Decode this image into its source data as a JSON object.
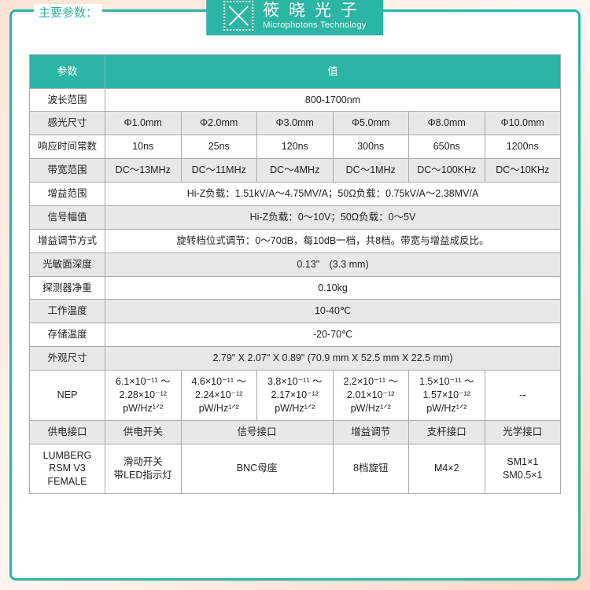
{
  "header": {
    "title": "主要参数："
  },
  "logo": {
    "cn": "筱 晓 光 子",
    "en": "Microphotons Technology"
  },
  "table": {
    "header_param": "参数",
    "header_value": "值",
    "rows": {
      "wavelength": {
        "label": "波长范围",
        "value": "800-1700nm"
      },
      "sensor_size": {
        "label": "感光尺寸",
        "v": [
          "Φ1.0mm",
          "Φ2.0mm",
          "Φ3.0mm",
          "Φ5.0mm",
          "Φ8.0mm",
          "Φ10.0mm"
        ]
      },
      "response_time": {
        "label": "响应时间常数",
        "v": [
          "10ns",
          "25ns",
          "120ns",
          "300ns",
          "650ns",
          "1200ns"
        ]
      },
      "bandwidth": {
        "label": "带宽范围",
        "v": [
          "DC～13MHz",
          "DC～11MHz",
          "DC～4MHz",
          "DC～1MHz",
          "DC～100KHz",
          "DC～10KHz"
        ]
      },
      "gain_range": {
        "label": "增益范围",
        "value": "Hi-Z负载：1.51kV/A～4.75MV/A；50Ω负载：0.75kV/A～2.38MV/A"
      },
      "signal_amp": {
        "label": "信号幅值",
        "value": "Hi-Z负载：0～10V；50Ω负载：0～5V"
      },
      "gain_adjust": {
        "label": "增益调节方式",
        "value": "旋转档位式调节：0～70dB，每10dB一档，共8档。带宽与增益成反比。"
      },
      "depth": {
        "label": "光敏面深度",
        "value": "0.13\"　(3.3 mm)"
      },
      "weight": {
        "label": "探测器净重",
        "value": "0.10kg"
      },
      "work_temp": {
        "label": "工作温度",
        "value": "10-40℃"
      },
      "store_temp": {
        "label": "存储温度",
        "value": "-20-70℃"
      },
      "dimensions": {
        "label": "外观尺寸",
        "value": "2.79\" X 2.07\" X 0.89\" (70.9 mm X 52.5 mm X 22.5 mm)"
      },
      "nep": {
        "label": "NEP",
        "v": [
          "6.1×10⁻¹¹ ～2.28×10⁻¹² pW/Hz¹ᐟ²",
          "4.6×10⁻¹¹ ～2.24×10⁻¹² pW/Hz¹ᐟ²",
          "3.8×10⁻¹¹ ～2.17×10⁻¹² pW/Hz¹ᐟ²",
          "2.2×10⁻¹¹ ～2.01×10⁻¹² pW/Hz¹ᐟ²",
          "1.5×10⁻¹¹ ～1.57×10⁻¹² pW/Hz¹ᐟ²",
          "--"
        ]
      },
      "interfaces_hdr": {
        "label": "供电接口",
        "v": [
          "供电开关",
          "信号接口",
          "增益调节",
          "支杆接口",
          "光学接口"
        ]
      },
      "interfaces_val": {
        "label": "LUMBERG RSM V3 FEMALE",
        "v": [
          "滑动开关\n带LED指示灯",
          "BNC母座",
          "8档旋钮",
          "M4×2",
          "SM1×1\nSM0.5×1"
        ]
      }
    }
  },
  "colors": {
    "brand": "#2ab5a4",
    "row_gray": "#e8e8e8",
    "row_white": "#ffffff",
    "border": "#aaaaaa",
    "text": "#222222"
  }
}
